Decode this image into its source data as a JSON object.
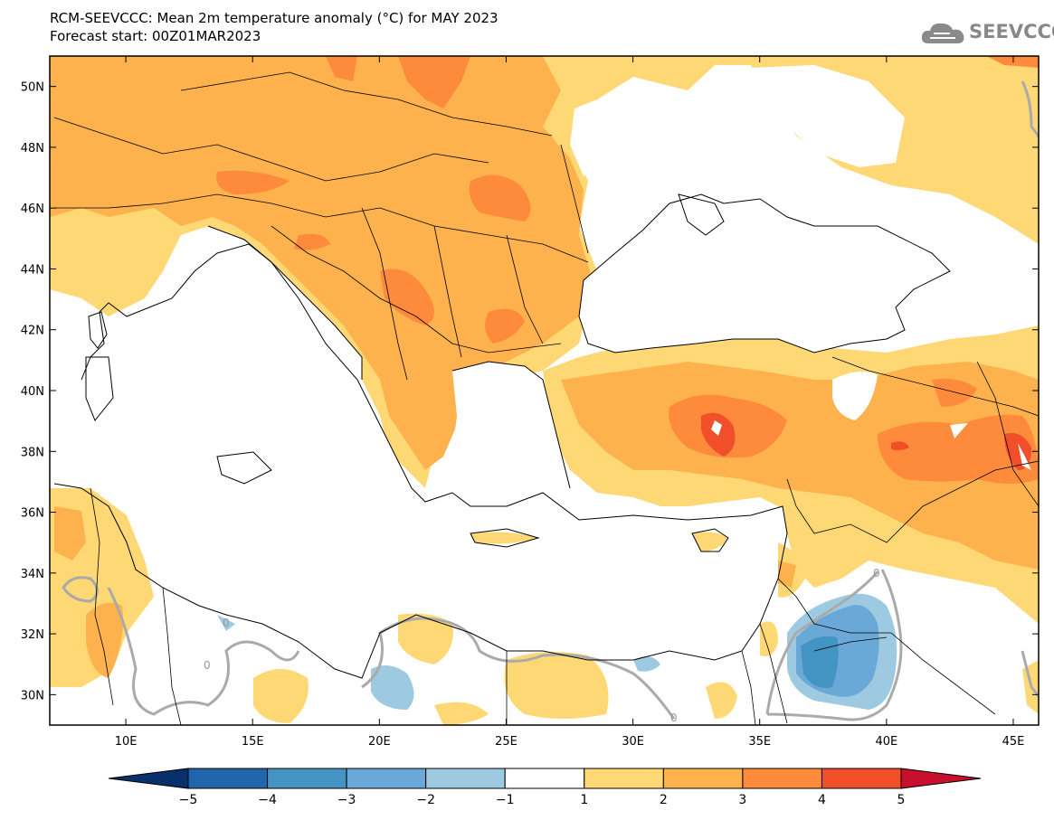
{
  "header": {
    "title_line1": "RCM-SEEVCCC: Mean 2m temperature anomaly (°C) for MAY 2023",
    "title_line2": "Forecast start: 00Z01MAR2023"
  },
  "logo": {
    "text": "SEEVCCC",
    "icon": "cloud-icon"
  },
  "map": {
    "lon_range": [
      7,
      46
    ],
    "lat_range": [
      29,
      51
    ],
    "lon_ticks": [
      {
        "value": 10,
        "label": "10E"
      },
      {
        "value": 15,
        "label": "15E"
      },
      {
        "value": 20,
        "label": "20E"
      },
      {
        "value": 25,
        "label": "25E"
      },
      {
        "value": 30,
        "label": "30E"
      },
      {
        "value": 35,
        "label": "35E"
      },
      {
        "value": 40,
        "label": "40E"
      },
      {
        "value": 45,
        "label": "45E"
      }
    ],
    "lat_ticks": [
      {
        "value": 50,
        "label": "50N"
      },
      {
        "value": 48,
        "label": "48N"
      },
      {
        "value": 46,
        "label": "46N"
      },
      {
        "value": 44,
        "label": "44N"
      },
      {
        "value": 42,
        "label": "42N"
      },
      {
        "value": 40,
        "label": "40N"
      },
      {
        "value": 38,
        "label": "38N"
      },
      {
        "value": 36,
        "label": "36N"
      },
      {
        "value": 34,
        "label": "34N"
      },
      {
        "value": 32,
        "label": "32N"
      },
      {
        "value": 30,
        "label": "30N"
      }
    ],
    "contour_labels": [
      "0",
      "0",
      "0",
      "0"
    ]
  },
  "colorbar": {
    "labels": [
      "−5",
      "−4",
      "−3",
      "−2",
      "−1",
      "1",
      "2",
      "3",
      "4",
      "5"
    ],
    "colors": [
      "#2166ac",
      "#4393c3",
      "#6aa8d8",
      "#9ecae1",
      "#ffffff",
      "#fdd875",
      "#fdb24d",
      "#fd8b3b",
      "#f04f2a"
    ],
    "extend_low_color": "#08306b",
    "extend_high_color": "#c8102e"
  },
  "colors": {
    "c1": "#fdd875",
    "c2": "#fdb24d",
    "c3": "#fd8b3b",
    "c4": "#f04f2a",
    "b1": "#9ecae1",
    "b2": "#6aa8d8",
    "b3": "#4393c3",
    "contour": "#aaaaaa"
  }
}
